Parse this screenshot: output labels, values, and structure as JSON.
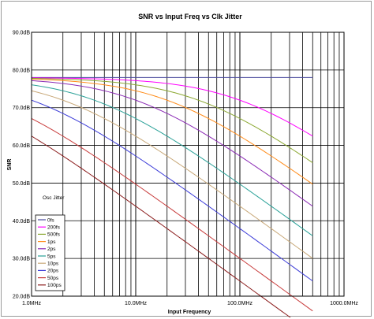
{
  "chart_data": {
    "type": "line",
    "title": "SNR vs Input Freq vs Clk Jitter",
    "xlabel": "Input Frequency",
    "ylabel": "SNR",
    "x_scale": "log",
    "xlim_mhz": [
      1,
      1000
    ],
    "ylim_db": [
      20,
      90
    ],
    "x_ticks": [
      {
        "value": 1,
        "label": "1.0MHz"
      },
      {
        "value": 10,
        "label": "10.0MHz"
      },
      {
        "value": 100,
        "label": "100.0MHz"
      },
      {
        "value": 1000,
        "label": "1000.0MHz"
      }
    ],
    "y_ticks": [
      {
        "value": 20,
        "label": "20.0dB"
      },
      {
        "value": 30,
        "label": "30.0dB"
      },
      {
        "value": 40,
        "label": "40.0dB"
      },
      {
        "value": 50,
        "label": "50.0dB"
      },
      {
        "value": 60,
        "label": "60.0dB"
      },
      {
        "value": 70,
        "label": "70.0dB"
      },
      {
        "value": 80,
        "label": "80.0dB"
      },
      {
        "value": 90,
        "label": "90.0dB"
      }
    ],
    "grid": true,
    "legend_title": "Osc Jitter",
    "legend_position": "bottom-left",
    "x_end_mhz": 500,
    "base_snr_db": 78,
    "series": [
      {
        "name": "0fs",
        "jitter_fs": 0,
        "color": "#4a4a9c"
      },
      {
        "name": "200fs",
        "jitter_fs": 200,
        "color": "#ff00ff"
      },
      {
        "name": "500fs",
        "jitter_fs": 500,
        "color": "#8ca832"
      },
      {
        "name": "1ps",
        "jitter_fs": 1000,
        "color": "#ff8c1a"
      },
      {
        "name": "2ps",
        "jitter_fs": 2000,
        "color": "#8b2bb5"
      },
      {
        "name": "5ps",
        "jitter_fs": 5000,
        "color": "#2aa198"
      },
      {
        "name": "10ps",
        "jitter_fs": 10000,
        "color": "#c8a878"
      },
      {
        "name": "20ps",
        "jitter_fs": 20000,
        "color": "#3c3cd8"
      },
      {
        "name": "50ps",
        "jitter_fs": 50000,
        "color": "#c83c3c"
      },
      {
        "name": "100ps",
        "jitter_fs": 100000,
        "color": "#8b1c1c"
      }
    ]
  }
}
